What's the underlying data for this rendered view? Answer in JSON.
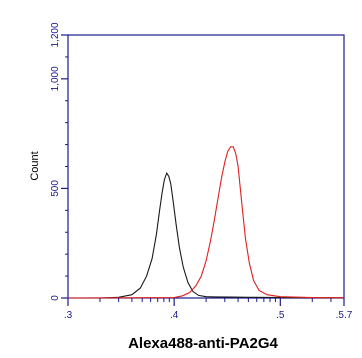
{
  "chart_data": {
    "type": "line",
    "title": "",
    "xlabel": "Alexa488-anti-PA2G4",
    "ylabel": "Count",
    "x_scale": "log",
    "x_ticks": [
      {
        "value": 1000,
        "label": "3"
      },
      {
        "value": 10000,
        "label": "4"
      },
      {
        "value": 100000,
        "label": "5"
      },
      {
        "value": 398107,
        "label": "5.7"
      }
    ],
    "x_tick_prefix": ".",
    "ylim": [
      0,
      1200
    ],
    "y_ticks": [
      {
        "value": 0,
        "label": "0"
      },
      {
        "value": 500,
        "label": "500"
      },
      {
        "value": 1000,
        "label": "1,000"
      },
      {
        "value": 1200,
        "label": "1,200"
      }
    ],
    "grid": false,
    "series": [
      {
        "color": "#1a1a1a",
        "x": [
          1000,
          2000,
          3000,
          4000,
          4800,
          5500,
          6200,
          6800,
          7300,
          7700,
          8100,
          8500,
          8900,
          9300,
          9800,
          10400,
          11200,
          12200,
          13500,
          15000,
          17000,
          20000,
          25000,
          35000,
          50000,
          100000,
          398107
        ],
        "y": [
          0,
          0,
          3,
          15,
          45,
          100,
          180,
          290,
          400,
          480,
          540,
          570,
          555,
          520,
          440,
          340,
          230,
          140,
          70,
          30,
          12,
          6,
          5,
          4,
          3,
          2,
          1
        ]
      },
      {
        "color": "#e02020",
        "x": [
          1000,
          10000,
          12000,
          14000,
          16000,
          18000,
          20000,
          22000,
          24000,
          26000,
          28000,
          30000,
          32000,
          34000,
          36000,
          38000,
          40000,
          42000,
          44000,
          47000,
          51000,
          56000,
          63000,
          75000,
          100000,
          200000,
          398107
        ],
        "y": [
          0,
          2,
          10,
          25,
          55,
          100,
          170,
          260,
          360,
          460,
          550,
          620,
          670,
          690,
          690,
          660,
          600,
          500,
          400,
          270,
          160,
          80,
          35,
          15,
          6,
          2,
          1
        ]
      }
    ]
  }
}
